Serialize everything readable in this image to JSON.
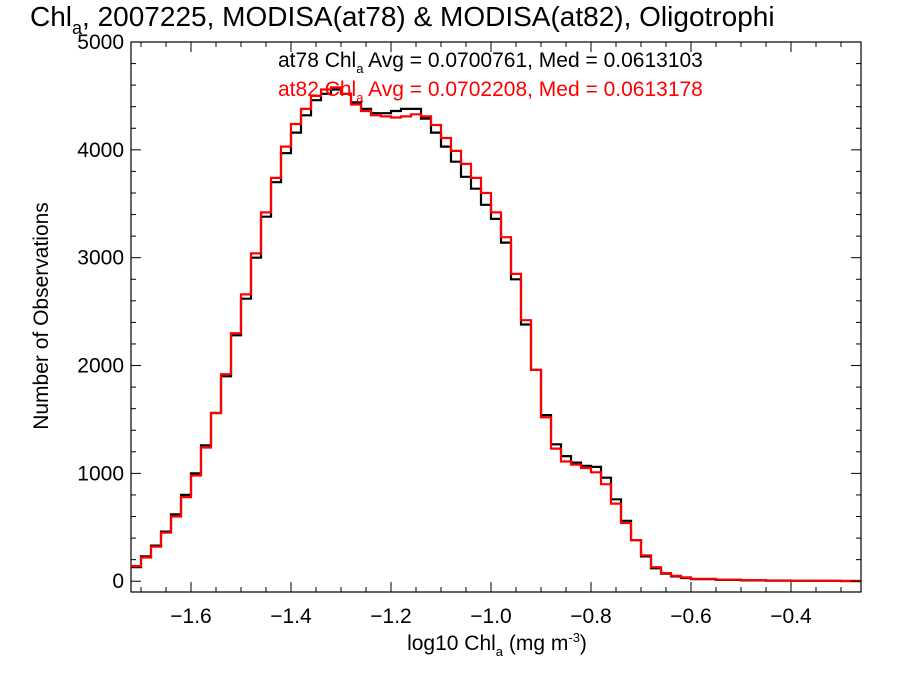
{
  "chart_data": {
    "type": "line",
    "title": {
      "pre": "Chl",
      "sub": "a",
      "post": ", 2007225, MODISA(at78) & MODISA(at82), Oligotrophi"
    },
    "xlabel": {
      "pre": "log10 Chl",
      "sub": "a",
      "mid": " (mg m",
      "sup": "-3",
      "post": ")"
    },
    "ylabel": "Number of Observations",
    "xlim": [
      -1.72,
      -0.26
    ],
    "ylim": [
      -100,
      5000
    ],
    "x_ticks": [
      -1.6,
      -1.4,
      -1.2,
      -1.0,
      -0.8,
      -0.6,
      -0.4
    ],
    "x_tick_labels": [
      "−1.6",
      "−1.4",
      "−1.2",
      "−1.0",
      "−0.8",
      "−0.6",
      "−0.4"
    ],
    "y_ticks": [
      0,
      1000,
      2000,
      3000,
      4000,
      5000
    ],
    "y_tick_labels": [
      "0",
      "1000",
      "2000",
      "3000",
      "4000",
      "5000"
    ],
    "annotations": [
      {
        "pre": "at78 Chl",
        "sub": "a",
        "post": " Avg = 0.0700761, Med = 0.0613103",
        "color": "#000000"
      },
      {
        "pre": "at82 Chl",
        "sub": "a",
        "post": " Avg = 0.0702208, Med = 0.0613178",
        "color": "#ff0000"
      }
    ],
    "series": [
      {
        "color": "#000000",
        "x": [
          -1.72,
          -1.7,
          -1.68,
          -1.66,
          -1.64,
          -1.62,
          -1.6,
          -1.58,
          -1.56,
          -1.54,
          -1.52,
          -1.5,
          -1.48,
          -1.46,
          -1.44,
          -1.42,
          -1.4,
          -1.38,
          -1.36,
          -1.34,
          -1.32,
          -1.3,
          -1.28,
          -1.26,
          -1.24,
          -1.22,
          -1.2,
          -1.18,
          -1.16,
          -1.14,
          -1.12,
          -1.1,
          -1.08,
          -1.06,
          -1.04,
          -1.02,
          -1.0,
          -0.98,
          -0.96,
          -0.94,
          -0.92,
          -0.9,
          -0.88,
          -0.86,
          -0.84,
          -0.82,
          -0.8,
          -0.78,
          -0.76,
          -0.74,
          -0.72,
          -0.7,
          -0.68,
          -0.66,
          -0.64,
          -0.62,
          -0.6,
          -0.55,
          -0.5,
          -0.45,
          -0.4,
          -0.35,
          -0.3,
          -0.26
        ],
        "y": [
          130,
          230,
          330,
          460,
          620,
          800,
          1000,
          1260,
          1560,
          1900,
          2280,
          2620,
          3000,
          3380,
          3700,
          3970,
          4160,
          4320,
          4460,
          4520,
          4560,
          4520,
          4440,
          4380,
          4340,
          4340,
          4360,
          4380,
          4380,
          4290,
          4160,
          4030,
          3890,
          3750,
          3640,
          3490,
          3360,
          3140,
          2800,
          2380,
          1960,
          1540,
          1270,
          1160,
          1100,
          1070,
          1060,
          960,
          760,
          560,
          380,
          230,
          120,
          70,
          45,
          30,
          20,
          12,
          8,
          6,
          4,
          3,
          2,
          2
        ]
      },
      {
        "color": "#ff0000",
        "x": [
          -1.72,
          -1.7,
          -1.68,
          -1.66,
          -1.64,
          -1.62,
          -1.6,
          -1.58,
          -1.56,
          -1.54,
          -1.52,
          -1.5,
          -1.48,
          -1.46,
          -1.44,
          -1.42,
          -1.4,
          -1.38,
          -1.36,
          -1.34,
          -1.32,
          -1.3,
          -1.28,
          -1.26,
          -1.24,
          -1.22,
          -1.2,
          -1.18,
          -1.16,
          -1.14,
          -1.12,
          -1.1,
          -1.08,
          -1.06,
          -1.04,
          -1.02,
          -1.0,
          -0.98,
          -0.96,
          -0.94,
          -0.92,
          -0.9,
          -0.88,
          -0.86,
          -0.84,
          -0.82,
          -0.8,
          -0.78,
          -0.76,
          -0.74,
          -0.72,
          -0.7,
          -0.68,
          -0.66,
          -0.64,
          -0.62,
          -0.6,
          -0.55,
          -0.5,
          -0.45,
          -0.4,
          -0.35,
          -0.3,
          -0.26
        ],
        "y": [
          140,
          220,
          320,
          450,
          600,
          780,
          980,
          1240,
          1560,
          1920,
          2300,
          2660,
          3040,
          3420,
          3740,
          4030,
          4240,
          4380,
          4500,
          4560,
          4580,
          4520,
          4420,
          4360,
          4320,
          4310,
          4300,
          4310,
          4330,
          4310,
          4230,
          4110,
          3990,
          3870,
          3740,
          3600,
          3420,
          3190,
          2850,
          2420,
          1960,
          1520,
          1230,
          1110,
          1080,
          1050,
          1010,
          900,
          720,
          540,
          380,
          240,
          130,
          75,
          50,
          35,
          22,
          14,
          9,
          7,
          5,
          3,
          2,
          2
        ]
      }
    ]
  }
}
